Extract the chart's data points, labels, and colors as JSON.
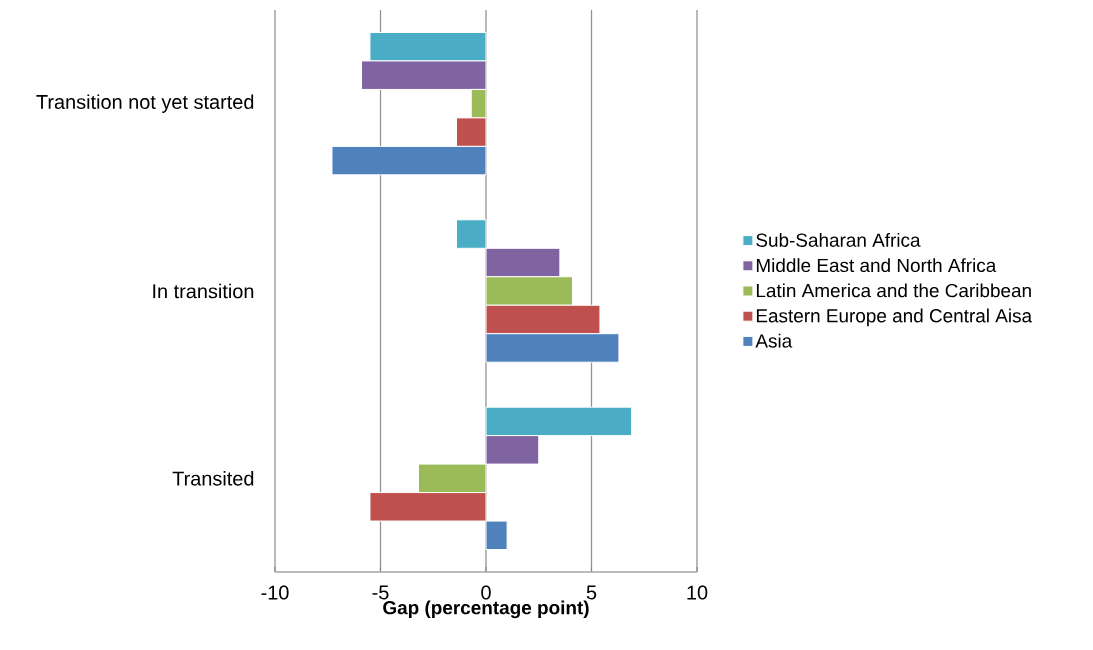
{
  "chart_data": {
    "type": "bar",
    "orientation": "horizontal",
    "categories": [
      "Transition not yet started",
      "In transition",
      "Transited"
    ],
    "series": [
      {
        "name": "Sub-Saharan Africa",
        "color": "#4bacc6",
        "values": [
          -5.5,
          -1.4,
          6.9
        ]
      },
      {
        "name": "Middle East and North Africa",
        "color": "#8064a2",
        "values": [
          -5.9,
          3.5,
          2.5
        ]
      },
      {
        "name": "Latin America and the Caribbean",
        "color": "#9bbb59",
        "values": [
          -0.7,
          4.1,
          -3.2
        ]
      },
      {
        "name": "Eastern Europe and Central Aisa",
        "color": "#c0504d",
        "values": [
          -1.4,
          5.4,
          -5.5
        ]
      },
      {
        "name": "Asia",
        "color": "#4f81bd",
        "values": [
          -7.3,
          6.3,
          1.0
        ]
      }
    ],
    "xlabel": "Gap (percentage point)",
    "xlim": [
      -10,
      10
    ],
    "xticks": [
      -10,
      -5,
      0,
      5,
      10
    ],
    "grid": "x",
    "legend": "right"
  }
}
